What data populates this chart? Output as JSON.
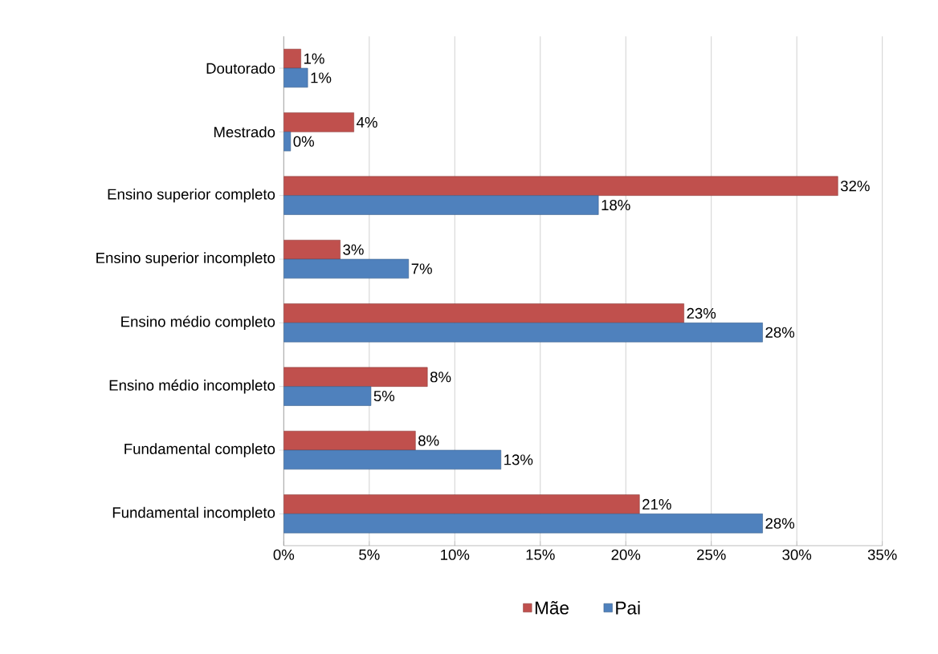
{
  "chart_data": {
    "type": "bar",
    "orientation": "horizontal",
    "categories": [
      "Doutorado",
      "Mestrado",
      "Ensino superior completo",
      "Ensino superior incompleto",
      "Ensino médio completo",
      "Ensino médio incompleto",
      "Fundamental completo",
      "Fundamental incompleto"
    ],
    "series": [
      {
        "name": "Mãe",
        "color": "#c0504d",
        "values": [
          1.0,
          4.1,
          32.4,
          3.3,
          23.4,
          8.4,
          7.7,
          20.8
        ],
        "value_labels": [
          "1%",
          "4%",
          "32%",
          "3%",
          "23%",
          "8%",
          "8%",
          "21%"
        ]
      },
      {
        "name": "Pai",
        "color": "#4f81bd",
        "values": [
          1.4,
          0.4,
          18.4,
          7.3,
          28.0,
          5.1,
          12.7,
          28.0
        ],
        "value_labels": [
          "1%",
          "0%",
          "18%",
          "7%",
          "28%",
          "5%",
          "13%",
          "28%"
        ]
      }
    ],
    "xlim": [
      0,
      35
    ],
    "xticks": [
      {
        "value": 0,
        "label": "0%"
      },
      {
        "value": 5,
        "label": "5%"
      },
      {
        "value": 10,
        "label": "10%"
      },
      {
        "value": 15,
        "label": "15%"
      },
      {
        "value": 20,
        "label": "20%"
      },
      {
        "value": 25,
        "label": "25%"
      },
      {
        "value": 30,
        "label": "30%"
      },
      {
        "value": 35,
        "label": "35%"
      }
    ],
    "grid": "x",
    "legend": "bottom"
  }
}
